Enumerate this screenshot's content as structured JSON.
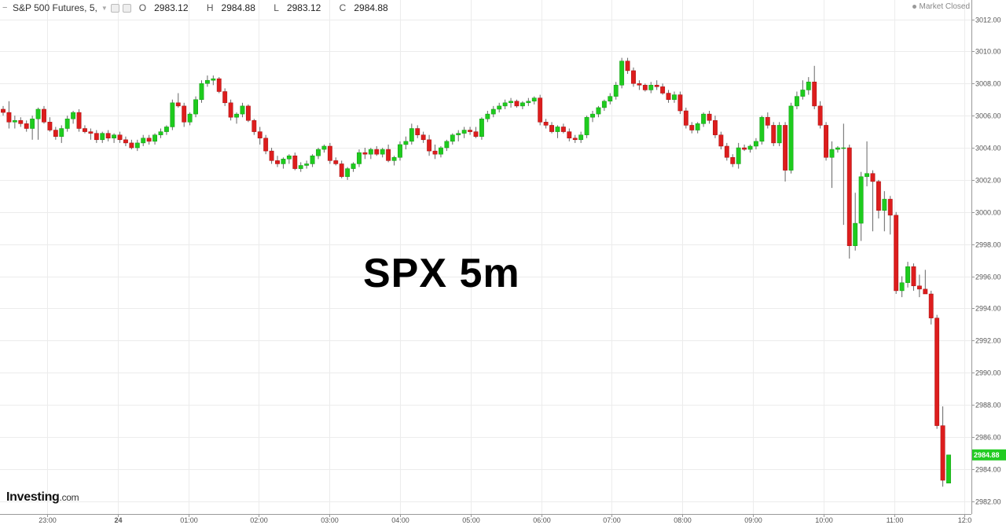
{
  "header": {
    "symbol": "S&P 500 Futures, 5,",
    "dropdown_icon": "chevron-down-icon",
    "open_label": "O",
    "open": "2983.12",
    "high_label": "H",
    "high": "2984.88",
    "low_label": "L",
    "low": "2983.12",
    "close_label": "C",
    "close": "2984.88"
  },
  "status": "Market Closed",
  "overlay_title": "SPX 5m",
  "logo": {
    "name": "Investing",
    "suffix": ".com"
  },
  "colors": {
    "up": "#1ecb1e",
    "down": "#dd1d1d",
    "grid": "#ececec",
    "wick": "#666666",
    "price_tag": "#22cc22"
  },
  "chart_data": {
    "type": "candlestick",
    "title": "SPX 5m",
    "ylim": [
      2981.2,
      3013.2
    ],
    "yticks": [
      "2982.00",
      "2984.00",
      "2986.00",
      "2988.00",
      "2990.00",
      "2992.00",
      "2994.00",
      "2996.00",
      "2998.00",
      "3000.00",
      "3002.00",
      "3004.00",
      "3006.00",
      "3008.00",
      "3010.00",
      "3012.00"
    ],
    "xticks": [
      "23:00",
      "24",
      "01:00",
      "02:00",
      "03:00",
      "04:00",
      "05:00",
      "06:00",
      "07:00",
      "08:00",
      "09:00",
      "10:00",
      "11:00",
      "12:0"
    ],
    "last_price": "2984.88",
    "candles": [
      [
        3006.4,
        3006.6,
        3006.0,
        3006.2
      ],
      [
        3006.2,
        3006.9,
        3005.2,
        3005.6
      ],
      [
        3005.6,
        3006.0,
        3005.2,
        3005.7
      ],
      [
        3005.7,
        3005.9,
        3005.3,
        3005.5
      ],
      [
        3005.5,
        3005.7,
        3005.0,
        3005.2
      ],
      [
        3005.2,
        3006.0,
        3004.5,
        3005.8
      ],
      [
        3005.8,
        3006.5,
        3004.5,
        3006.4
      ],
      [
        3006.4,
        3006.6,
        3005.5,
        3005.6
      ],
      [
        3005.6,
        3005.9,
        3005.0,
        3005.1
      ],
      [
        3005.1,
        3005.3,
        3004.5,
        3004.7
      ],
      [
        3004.7,
        3005.4,
        3004.3,
        3005.2
      ],
      [
        3005.2,
        3006.0,
        3005.0,
        3005.8
      ],
      [
        3005.8,
        3006.3,
        3005.5,
        3006.2
      ],
      [
        3006.2,
        3006.4,
        3005.0,
        3005.2
      ],
      [
        3005.2,
        3005.4,
        3004.9,
        3005.0
      ],
      [
        3005.0,
        3005.2,
        3004.5,
        3004.9
      ],
      [
        3004.9,
        3005.1,
        3004.3,
        3004.5
      ],
      [
        3004.5,
        3005.0,
        3004.3,
        3004.9
      ],
      [
        3004.9,
        3005.1,
        3004.4,
        3004.6
      ],
      [
        3004.6,
        3004.9,
        3004.3,
        3004.8
      ],
      [
        3004.8,
        3005.0,
        3004.3,
        3004.5
      ],
      [
        3004.5,
        3004.7,
        3004.1,
        3004.3
      ],
      [
        3004.3,
        3004.5,
        3003.9,
        3004.0
      ],
      [
        3004.0,
        3004.5,
        3003.8,
        3004.3
      ],
      [
        3004.3,
        3004.8,
        3004.1,
        3004.6
      ],
      [
        3004.6,
        3004.8,
        3004.2,
        3004.4
      ],
      [
        3004.4,
        3004.9,
        3004.2,
        3004.8
      ],
      [
        3004.8,
        3005.2,
        3004.6,
        3005.0
      ],
      [
        3005.0,
        3005.4,
        3004.8,
        3005.3
      ],
      [
        3005.3,
        3007.0,
        3005.1,
        3006.8
      ],
      [
        3006.8,
        3007.4,
        3006.5,
        3006.6
      ],
      [
        3006.6,
        3006.8,
        3005.3,
        3005.6
      ],
      [
        3005.6,
        3006.2,
        3005.4,
        3006.1
      ],
      [
        3006.1,
        3007.2,
        3005.9,
        3007.0
      ],
      [
        3007.0,
        3008.2,
        3006.8,
        3008.0
      ],
      [
        3008.0,
        3008.5,
        3007.8,
        3008.2
      ],
      [
        3008.2,
        3008.5,
        3007.9,
        3008.3
      ],
      [
        3008.3,
        3008.4,
        3007.4,
        3007.5
      ],
      [
        3007.5,
        3007.7,
        3006.6,
        3006.8
      ],
      [
        3006.8,
        3007.0,
        3005.7,
        3005.9
      ],
      [
        3005.9,
        3006.2,
        3005.5,
        3006.1
      ],
      [
        3006.1,
        3006.8,
        3005.9,
        3006.6
      ],
      [
        3006.6,
        3006.7,
        3005.6,
        3005.7
      ],
      [
        3005.7,
        3005.8,
        3004.8,
        3005.0
      ],
      [
        3005.0,
        3005.3,
        3004.2,
        3004.6
      ],
      [
        3004.6,
        3004.8,
        3003.6,
        3003.8
      ],
      [
        3003.8,
        3004.0,
        3003.0,
        3003.2
      ],
      [
        3003.2,
        3003.5,
        3002.8,
        3003.0
      ],
      [
        3003.0,
        3003.4,
        3002.7,
        3003.3
      ],
      [
        3003.3,
        3003.6,
        3003.0,
        3003.5
      ],
      [
        3003.5,
        3003.7,
        3002.6,
        3002.7
      ],
      [
        3002.7,
        3003.1,
        3002.5,
        3002.9
      ],
      [
        3002.9,
        3003.2,
        3002.7,
        3003.0
      ],
      [
        3003.0,
        3003.6,
        3002.8,
        3003.5
      ],
      [
        3003.5,
        3004.0,
        3003.3,
        3003.9
      ],
      [
        3003.9,
        3004.2,
        3003.7,
        3004.1
      ],
      [
        3004.1,
        3004.3,
        3003.0,
        3003.2
      ],
      [
        3003.2,
        3003.4,
        3002.9,
        3003.0
      ],
      [
        3003.0,
        3003.2,
        3002.1,
        3002.2
      ],
      [
        3002.2,
        3002.8,
        3002.0,
        3002.7
      ],
      [
        3002.7,
        3003.1,
        3002.5,
        3003.0
      ],
      [
        3003.0,
        3003.9,
        3002.8,
        3003.7
      ],
      [
        3003.7,
        3004.0,
        3003.3,
        3003.6
      ],
      [
        3003.6,
        3004.0,
        3003.3,
        3003.9
      ],
      [
        3003.9,
        3004.1,
        3003.5,
        3003.6
      ],
      [
        3003.6,
        3004.0,
        3003.4,
        3003.9
      ],
      [
        3003.9,
        3004.2,
        3003.1,
        3003.2
      ],
      [
        3003.2,
        3003.5,
        3002.9,
        3003.4
      ],
      [
        3003.4,
        3004.4,
        3003.2,
        3004.2
      ],
      [
        3004.2,
        3004.7,
        3003.9,
        3004.4
      ],
      [
        3004.4,
        3005.5,
        3004.2,
        3005.2
      ],
      [
        3005.2,
        3005.4,
        3004.6,
        3004.8
      ],
      [
        3004.8,
        3005.0,
        3004.3,
        3004.5
      ],
      [
        3004.5,
        3004.8,
        3003.5,
        3003.8
      ],
      [
        3003.8,
        3004.2,
        3003.3,
        3003.6
      ],
      [
        3003.6,
        3004.1,
        3003.4,
        3004.0
      ],
      [
        3004.0,
        3004.5,
        3003.8,
        3004.4
      ],
      [
        3004.4,
        3004.9,
        3004.2,
        3004.8
      ],
      [
        3004.8,
        3005.1,
        3004.4,
        3004.9
      ],
      [
        3004.9,
        3005.3,
        3004.6,
        3005.1
      ],
      [
        3005.1,
        3005.3,
        3004.8,
        3005.0
      ],
      [
        3005.0,
        3005.3,
        3004.6,
        3004.7
      ],
      [
        3004.7,
        3005.9,
        3004.5,
        3005.8
      ],
      [
        3005.8,
        3006.3,
        3005.6,
        3006.1
      ],
      [
        3006.1,
        3006.6,
        3005.9,
        3006.4
      ],
      [
        3006.4,
        3006.8,
        3006.2,
        3006.6
      ],
      [
        3006.6,
        3007.0,
        3006.4,
        3006.8
      ],
      [
        3006.8,
        3007.1,
        3006.5,
        3006.9
      ],
      [
        3006.9,
        3007.0,
        3006.5,
        3006.6
      ],
      [
        3006.6,
        3006.9,
        3006.4,
        3006.8
      ],
      [
        3006.8,
        3007.1,
        3006.6,
        3006.9
      ],
      [
        3006.9,
        3007.2,
        3006.7,
        3007.1
      ],
      [
        3007.1,
        3007.3,
        3005.4,
        3005.6
      ],
      [
        3005.6,
        3005.8,
        3005.2,
        3005.4
      ],
      [
        3005.4,
        3005.6,
        3004.9,
        3005.0
      ],
      [
        3005.0,
        3005.4,
        3004.6,
        3005.3
      ],
      [
        3005.3,
        3005.5,
        3004.9,
        3005.0
      ],
      [
        3005.0,
        3005.2,
        3004.4,
        3004.6
      ],
      [
        3004.6,
        3004.8,
        3004.3,
        3004.5
      ],
      [
        3004.5,
        3005.0,
        3004.3,
        3004.8
      ],
      [
        3004.8,
        3006.0,
        3004.6,
        3005.9
      ],
      [
        3005.9,
        3006.3,
        3005.6,
        3006.1
      ],
      [
        3006.1,
        3006.6,
        3005.9,
        3006.5
      ],
      [
        3006.5,
        3007.0,
        3006.3,
        3006.9
      ],
      [
        3006.9,
        3007.4,
        3006.7,
        3007.2
      ],
      [
        3007.2,
        3008.1,
        3007.0,
        3007.9
      ],
      [
        3007.9,
        3009.6,
        3007.7,
        3009.4
      ],
      [
        3009.4,
        3009.6,
        3008.6,
        3008.8
      ],
      [
        3008.8,
        3009.0,
        3007.8,
        3008.0
      ],
      [
        3008.0,
        3008.2,
        3007.6,
        3007.9
      ],
      [
        3007.9,
        3008.0,
        3007.5,
        3007.6
      ],
      [
        3007.6,
        3008.1,
        3007.4,
        3007.9
      ],
      [
        3007.9,
        3008.2,
        3007.6,
        3007.8
      ],
      [
        3007.8,
        3008.0,
        3007.3,
        3007.4
      ],
      [
        3007.4,
        3007.6,
        3006.8,
        3007.0
      ],
      [
        3007.0,
        3007.5,
        3006.8,
        3007.3
      ],
      [
        3007.3,
        3007.5,
        3006.1,
        3006.3
      ],
      [
        3006.3,
        3006.5,
        3005.2,
        3005.4
      ],
      [
        3005.4,
        3005.6,
        3004.9,
        3005.1
      ],
      [
        3005.1,
        3005.6,
        3004.9,
        3005.5
      ],
      [
        3005.5,
        3006.2,
        3005.3,
        3006.1
      ],
      [
        3006.1,
        3006.3,
        3005.5,
        3005.7
      ],
      [
        3005.7,
        3006.0,
        3004.6,
        3004.8
      ],
      [
        3004.8,
        3005.0,
        3003.9,
        3004.1
      ],
      [
        3004.1,
        3004.3,
        3003.2,
        3003.4
      ],
      [
        3003.4,
        3003.6,
        3002.8,
        3003.0
      ],
      [
        3003.0,
        3004.3,
        3002.7,
        3004.0
      ],
      [
        3004.0,
        3004.2,
        3003.8,
        3003.9
      ],
      [
        3003.9,
        3004.2,
        3003.7,
        3004.1
      ],
      [
        3004.1,
        3004.6,
        3003.9,
        3004.4
      ],
      [
        3004.4,
        3006.0,
        3004.2,
        3005.9
      ],
      [
        3005.9,
        3006.2,
        3005.2,
        3005.4
      ],
      [
        3005.4,
        3005.6,
        3004.1,
        3004.3
      ],
      [
        3004.3,
        3005.6,
        3004.1,
        3005.4
      ],
      [
        3005.4,
        3005.6,
        3001.9,
        3002.6
      ],
      [
        3002.6,
        3006.8,
        3002.4,
        3006.6
      ],
      [
        3006.6,
        3007.5,
        3006.4,
        3007.2
      ],
      [
        3007.2,
        3008.2,
        3007.0,
        3007.6
      ],
      [
        3007.6,
        3008.4,
        3007.3,
        3008.1
      ],
      [
        3008.1,
        3009.1,
        3006.4,
        3006.6
      ],
      [
        3006.6,
        3006.9,
        3005.2,
        3005.4
      ],
      [
        3005.4,
        3005.6,
        3003.2,
        3003.4
      ],
      [
        3003.4,
        3004.4,
        3001.5,
        3003.9
      ],
      [
        3003.9,
        3004.1,
        3003.7,
        3004.0
      ],
      [
        3004.0,
        3005.5,
        2999.2,
        3004.0
      ],
      [
        3004.0,
        3004.2,
        2997.1,
        2997.9
      ],
      [
        2997.9,
        3001.2,
        2997.6,
        2999.3
      ],
      [
        2999.3,
        3002.5,
        2998.2,
        3002.2
      ],
      [
        3002.2,
        3004.4,
        3001.6,
        3002.4
      ],
      [
        3002.4,
        3002.6,
        2998.8,
        3001.9
      ],
      [
        3001.9,
        3002.0,
        2999.6,
        3000.1
      ],
      [
        3000.1,
        3001.3,
        2998.8,
        3000.8
      ],
      [
        3000.8,
        3001.0,
        2998.6,
        2999.8
      ],
      [
        2999.8,
        3000.0,
        2994.9,
        2995.1
      ],
      [
        2995.1,
        2996.0,
        2994.7,
        2995.6
      ],
      [
        2995.6,
        2996.9,
        2995.3,
        2996.6
      ],
      [
        2996.6,
        2996.8,
        2995.1,
        2995.4
      ],
      [
        2995.4,
        2996.1,
        2994.7,
        2995.2
      ],
      [
        2995.2,
        2996.4,
        2995.0,
        2994.9
      ],
      [
        2994.9,
        2995.1,
        2993.0,
        2993.4
      ],
      [
        2993.4,
        2993.6,
        2986.5,
        2986.7
      ],
      [
        2986.7,
        2987.9,
        2982.9,
        2983.3
      ],
      [
        2983.12,
        2984.88,
        2983.12,
        2984.88
      ]
    ]
  }
}
